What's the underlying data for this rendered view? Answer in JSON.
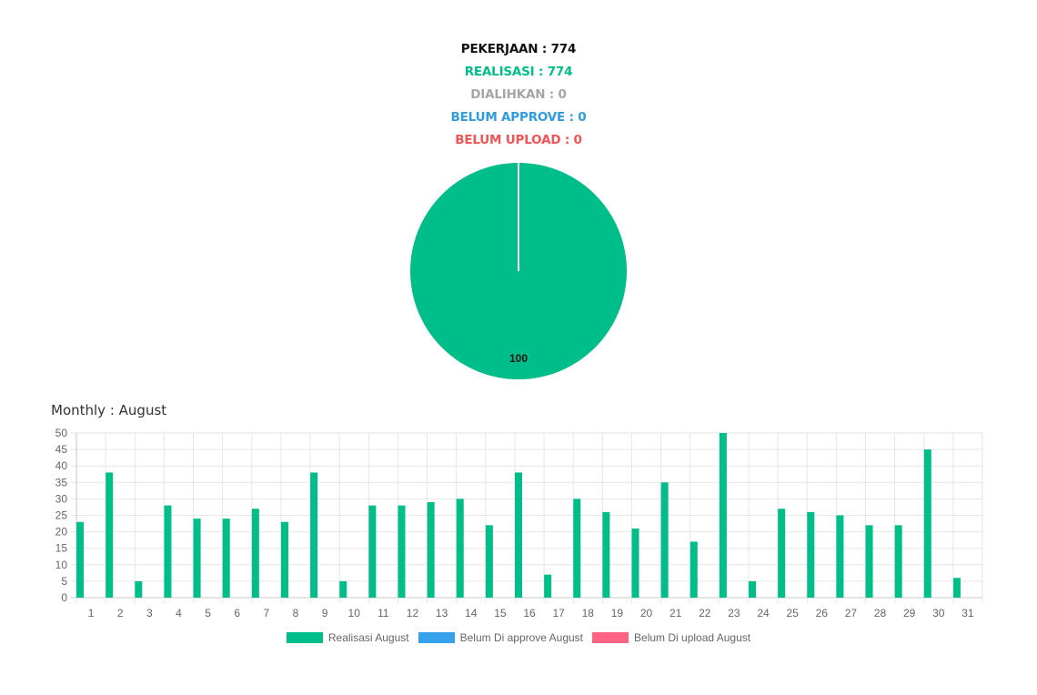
{
  "summary": {
    "pekerjaan": "PEKERJAAN : 774",
    "realisasi": "REALISASI : 774",
    "dialihkan": "DIALIHKAN : 0",
    "belum_approve": "BELUM APPROVE : 0",
    "belum_upload": "BELUM UPLOAD : 0"
  },
  "colors": {
    "green": "#00be8a",
    "blue": "#36a2eb",
    "red": "#ff6384",
    "gray": "#a6a6a6",
    "black": "#111111"
  },
  "monthly_title": "Monthly : August",
  "chart_data": [
    {
      "type": "pie",
      "categories": [
        "REALISASI",
        "DIALIHKAN",
        "BELUM APPROVE",
        "BELUM UPLOAD"
      ],
      "values": [
        774,
        0,
        0,
        0
      ],
      "data_labels": [
        "100"
      ]
    },
    {
      "type": "bar",
      "categories": [
        "1",
        "2",
        "3",
        "4",
        "5",
        "6",
        "7",
        "8",
        "9",
        "10",
        "11",
        "12",
        "13",
        "14",
        "15",
        "16",
        "17",
        "18",
        "19",
        "20",
        "21",
        "22",
        "23",
        "24",
        "25",
        "26",
        "27",
        "28",
        "29",
        "30",
        "31"
      ],
      "series": [
        {
          "name": "Realisasi August",
          "values": [
            23,
            38,
            5,
            28,
            24,
            24,
            27,
            23,
            38,
            5,
            28,
            28,
            29,
            30,
            22,
            38,
            7,
            30,
            26,
            21,
            35,
            17,
            50,
            5,
            27,
            26,
            25,
            22,
            22,
            45,
            6
          ]
        },
        {
          "name": "Belum Di approve August",
          "values": [
            0,
            0,
            0,
            0,
            0,
            0,
            0,
            0,
            0,
            0,
            0,
            0,
            0,
            0,
            0,
            0,
            0,
            0,
            0,
            0,
            0,
            0,
            0,
            0,
            0,
            0,
            0,
            0,
            0,
            0,
            0
          ]
        },
        {
          "name": "Belum Di upload August",
          "values": [
            0,
            0,
            0,
            0,
            0,
            0,
            0,
            0,
            0,
            0,
            0,
            0,
            0,
            0,
            0,
            0,
            0,
            0,
            0,
            0,
            0,
            0,
            0,
            0,
            0,
            0,
            0,
            0,
            0,
            0,
            0
          ]
        }
      ],
      "ylim": [
        0,
        50
      ],
      "yticks": [
        0,
        5,
        10,
        15,
        20,
        25,
        30,
        35,
        40,
        45,
        50
      ],
      "grid": true,
      "legend": "bottom"
    }
  ]
}
